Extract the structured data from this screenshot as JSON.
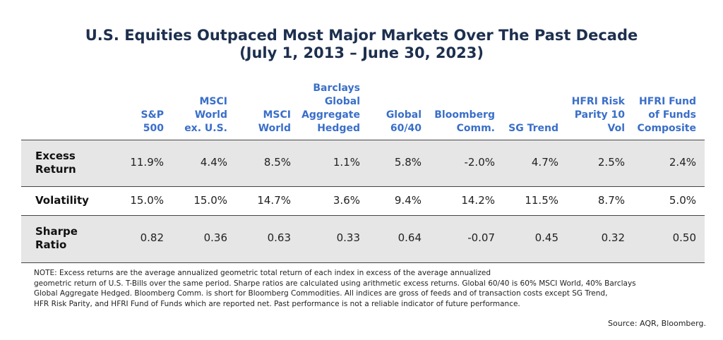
{
  "header": {
    "title": "U.S. Equities Outpaced Most Major Markets Over The Past Decade",
    "subtitle": "(July 1, 2013 – June 30, 2023)"
  },
  "table": {
    "columns": [
      [
        "S&P",
        "500"
      ],
      [
        "MSCI",
        "World",
        "ex. U.S."
      ],
      [
        "MSCI",
        "World"
      ],
      [
        "Barclays",
        "Global",
        "Aggregate",
        "Hedged"
      ],
      [
        "Global",
        "60/40"
      ],
      [
        "Bloomberg",
        "Comm."
      ],
      [
        "SG Trend"
      ],
      [
        "HFRI Risk",
        "Parity 10",
        "Vol"
      ],
      [
        "HFRI Fund",
        "of Funds",
        "Composite"
      ]
    ],
    "rows": [
      {
        "label": [
          "Excess",
          "Return"
        ],
        "cells": [
          "11.9%",
          "4.4%",
          "8.5%",
          "1.1%",
          "5.8%",
          "-2.0%",
          "4.7%",
          "2.5%",
          "2.4%"
        ]
      },
      {
        "label": [
          "Volatility"
        ],
        "cells": [
          "15.0%",
          "15.0%",
          "14.7%",
          "3.6%",
          "9.4%",
          "14.2%",
          "11.5%",
          "8.7%",
          "5.0%"
        ]
      },
      {
        "label": [
          "Sharpe",
          "Ratio"
        ],
        "cells": [
          "0.82",
          "0.36",
          "0.63",
          "0.33",
          "0.64",
          "-0.07",
          "0.45",
          "0.32",
          "0.50"
        ]
      }
    ]
  },
  "note": [
    "NOTE: Excess returns are the average annualized geometric total return of each index in excess of the average annualized",
    "geometric return of U.S. T-Bills over the same period. Sharpe ratios are calculated using arithmetic excess returns. Global 60/40 is 60% MSCI World, 40% Barclays",
    "Global Aggregate Hedged. Bloomberg Comm. is short for Bloomberg Commodities. All indices are gross of feeds and of transaction costs except SG Trend,",
    "HFR Risk Parity, and HFRI Fund of Funds which are reported net. Past performance is not a reliable indicator of future performance."
  ],
  "source": "Source: AQR, Bloomberg."
}
